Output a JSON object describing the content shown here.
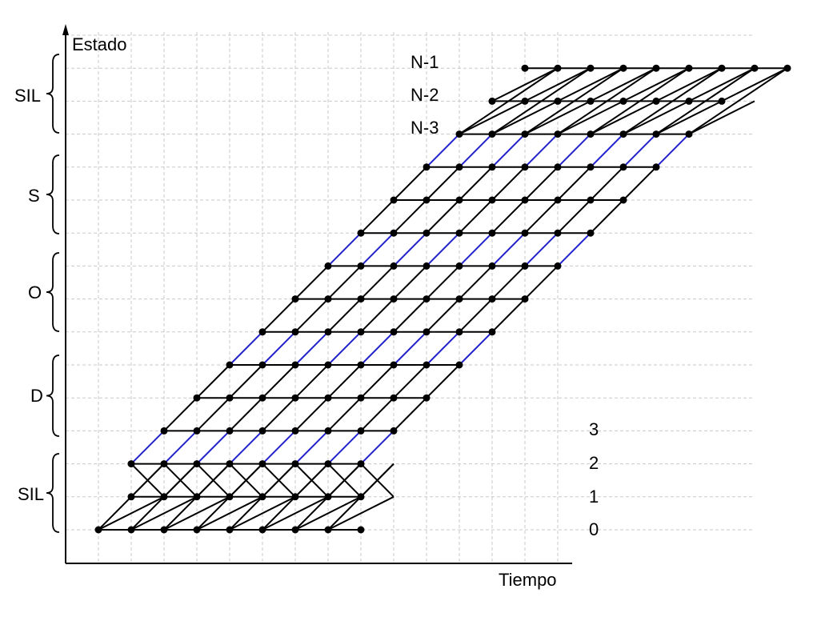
{
  "axes": {
    "y_label": "Estado",
    "x_label": "Tiempo"
  },
  "segments": [
    {
      "label": "SIL"
    },
    {
      "label": "S"
    },
    {
      "label": "O"
    },
    {
      "label": "D"
    },
    {
      "label": "SIL"
    }
  ],
  "state_labels_top": [
    "N-1",
    "N-2",
    "N-3"
  ],
  "state_labels_bottom": [
    "3",
    "2",
    "1",
    "0"
  ],
  "colors": {
    "node": "#000000",
    "edge": "#000000",
    "highlight_edge": "#2222cc",
    "grid": "#c8c8c8"
  },
  "lattice": {
    "num_states": 15,
    "num_time_steps": 9,
    "silence_states": 3,
    "note_shown": false
  }
}
